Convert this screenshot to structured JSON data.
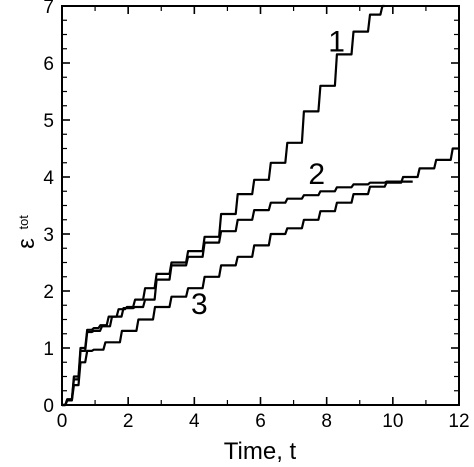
{
  "chart_data": {
    "type": "line",
    "xlabel": "Time, t",
    "ylabel_main": "ε",
    "ylabel_sub": "tot",
    "xlim": [
      0,
      12
    ],
    "ylim": [
      0,
      7
    ],
    "x_ticks": [
      0,
      2,
      4,
      6,
      8,
      10,
      12
    ],
    "y_ticks": [
      0,
      1,
      2,
      3,
      4,
      5,
      6,
      7
    ],
    "x_tick_labels": [
      "0",
      "2",
      "4",
      "6",
      "8",
      "10",
      "12"
    ],
    "y_tick_labels": [
      "0",
      "1",
      "2",
      "3",
      "4",
      "5",
      "6",
      "7"
    ],
    "grid": false,
    "series": [
      {
        "label": "1",
        "x": [
          0,
          0.2,
          0.4,
          0.6,
          0.8,
          1.0,
          1.2,
          1.5,
          1.8,
          2.0,
          2.3,
          2.6,
          3.0,
          3.5,
          4.0,
          4.5,
          5.0,
          5.5,
          6.0,
          6.5,
          7.0,
          7.5,
          8.0,
          8.5,
          9.0,
          9.5,
          9.75
        ],
        "y": [
          0,
          0.1,
          0.5,
          1.0,
          1.32,
          1.35,
          1.4,
          1.55,
          1.68,
          1.72,
          1.85,
          2.05,
          2.3,
          2.5,
          2.7,
          2.95,
          3.35,
          3.7,
          3.95,
          4.25,
          4.6,
          5.15,
          5.6,
          6.15,
          6.55,
          6.85,
          7.0
        ]
      },
      {
        "label": "2",
        "x": [
          0,
          0.2,
          0.4,
          0.6,
          0.8,
          1.0,
          1.3,
          1.6,
          2.0,
          2.3,
          2.6,
          3.0,
          3.5,
          4.0,
          4.5,
          5.0,
          5.5,
          6.0,
          6.5,
          7.0,
          7.5,
          8.0,
          8.5,
          9.0,
          9.5,
          10.0,
          10.6
        ],
        "y": [
          0,
          0.1,
          0.45,
          0.95,
          1.28,
          1.3,
          1.38,
          1.55,
          1.7,
          1.72,
          1.85,
          2.2,
          2.45,
          2.6,
          2.85,
          3.05,
          3.25,
          3.42,
          3.55,
          3.62,
          3.68,
          3.75,
          3.82,
          3.87,
          3.9,
          3.92,
          3.92
        ]
      },
      {
        "label": "3",
        "x": [
          0,
          0.2,
          0.4,
          0.6,
          0.8,
          1.0,
          1.5,
          2.0,
          2.5,
          3.0,
          3.5,
          4.0,
          4.5,
          5.0,
          5.5,
          6.0,
          6.5,
          7.0,
          7.5,
          8.0,
          8.5,
          9.0,
          9.5,
          10.0,
          10.5,
          11.0,
          11.5,
          12.0
        ],
        "y": [
          0,
          0.08,
          0.35,
          0.75,
          0.95,
          0.97,
          1.1,
          1.3,
          1.5,
          1.72,
          1.9,
          2.05,
          2.25,
          2.45,
          2.6,
          2.8,
          3.0,
          3.1,
          3.25,
          3.4,
          3.55,
          3.7,
          3.83,
          3.9,
          4.0,
          4.15,
          4.3,
          4.5
        ]
      }
    ],
    "series_labels": [
      {
        "text": "1",
        "x": 8.3,
        "y": 6.2
      },
      {
        "text": "2",
        "x": 7.7,
        "y": 3.88
      },
      {
        "text": "3",
        "x": 4.15,
        "y": 1.6
      }
    ]
  }
}
